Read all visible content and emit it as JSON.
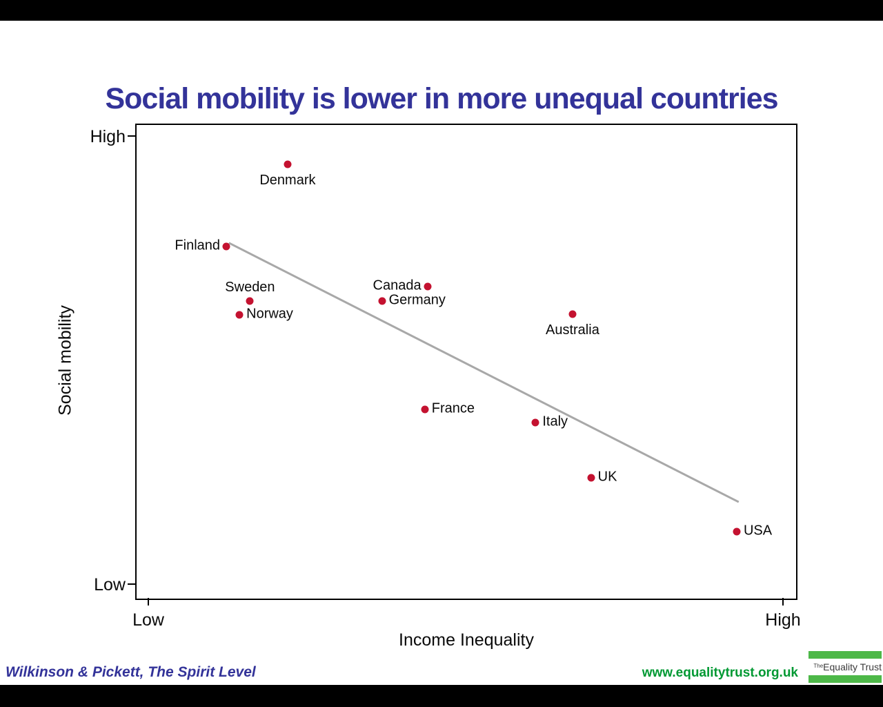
{
  "page": {
    "title": "Social mobility is lower in more unequal countries",
    "footer_left": "Wilkinson & Pickett, The Spirit Level",
    "footer_right_url": "www.equalitytrust.org.uk",
    "logo": {
      "prefix": "The",
      "name": "Equality Trust"
    }
  },
  "colors": {
    "title_blue": "#333399",
    "dot_red": "#C41230",
    "trend_gray": "#A8A8A8",
    "url_green": "#009933",
    "logo_green": "#4DB848"
  },
  "chart_data": {
    "type": "scatter",
    "title": "Social mobility is lower in more unequal countries",
    "xlabel": "Income Inequality",
    "ylabel": "Social mobility",
    "x_axis_ticks": [
      "Low",
      "High"
    ],
    "y_axis_ticks": [
      "High",
      "Low"
    ],
    "axis_note": "Both axes are qualitative scales from Low to High; point values below are fractions of axis range (0 = Low, 1 = High)",
    "grid": false,
    "legend": false,
    "points": [
      {
        "name": "Denmark",
        "label": "Denmark",
        "x": 0.229,
        "y": 0.917,
        "label_side": "below"
      },
      {
        "name": "Finland",
        "label": "Finland",
        "x": 0.136,
        "y": 0.743,
        "label_side": "left"
      },
      {
        "name": "Sweden",
        "label": "Sweden",
        "x": 0.172,
        "y": 0.628,
        "label_side": "above"
      },
      {
        "name": "Norway",
        "label": "Norway",
        "x": 0.156,
        "y": 0.599,
        "label_side": "right"
      },
      {
        "name": "Canada",
        "label": "Canada",
        "x": 0.441,
        "y": 0.659,
        "label_side": "left"
      },
      {
        "name": "Germany",
        "label": "Germany",
        "x": 0.372,
        "y": 0.628,
        "label_side": "right"
      },
      {
        "name": "Australia",
        "label": "Australia",
        "x": 0.661,
        "y": 0.601,
        "label_side": "below"
      },
      {
        "name": "France",
        "label": "France",
        "x": 0.437,
        "y": 0.399,
        "label_side": "right"
      },
      {
        "name": "Italy",
        "label": "Italy",
        "x": 0.605,
        "y": 0.372,
        "label_side": "right"
      },
      {
        "name": "UK",
        "label": "UK",
        "x": 0.689,
        "y": 0.255,
        "label_side": "right"
      },
      {
        "name": "USA",
        "label": "USA",
        "x": 0.91,
        "y": 0.141,
        "label_side": "right"
      }
    ],
    "trend_line": {
      "x1": 0.14,
      "y1": 0.751,
      "x2": 0.913,
      "y2": 0.204
    }
  }
}
